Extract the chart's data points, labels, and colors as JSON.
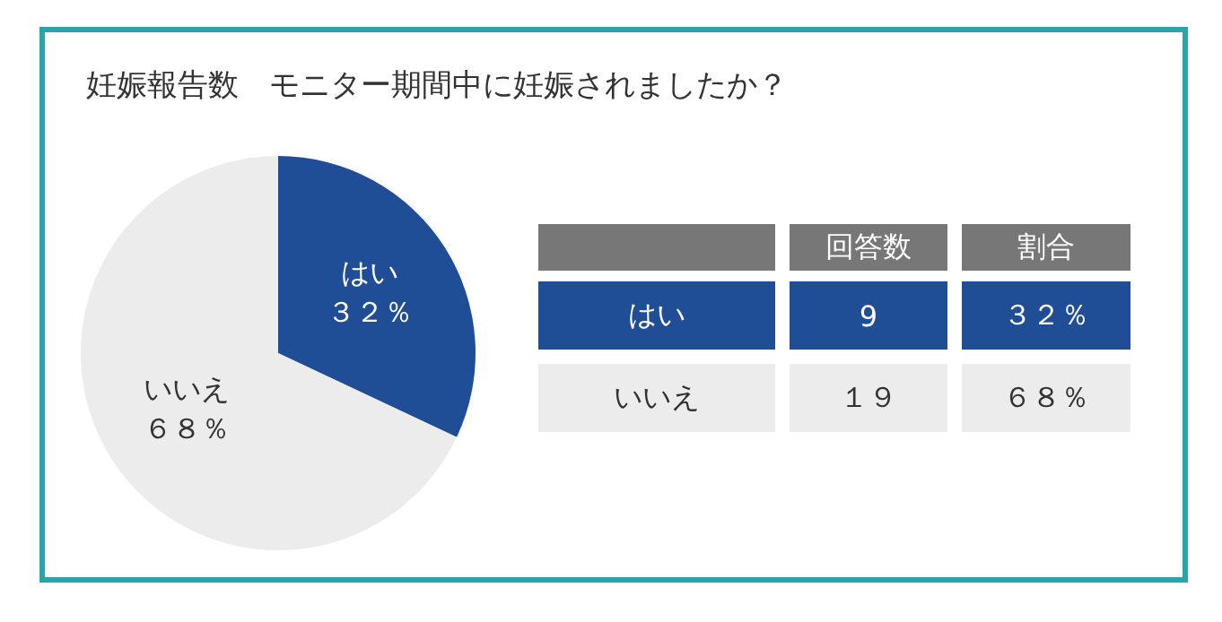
{
  "chart_data": {
    "type": "pie",
    "title": "妊娠報告数　モニター期間中に妊娠されましたか？",
    "categories": [
      "はい",
      "いいえ"
    ],
    "values": [
      32,
      68
    ],
    "value_labels": [
      "３２％",
      "６８％"
    ],
    "colors": [
      "#1f4e96",
      "#ececec"
    ],
    "annotations": [
      "回答数",
      "割合",
      "9",
      "１９"
    ],
    "legend": false
  }
}
